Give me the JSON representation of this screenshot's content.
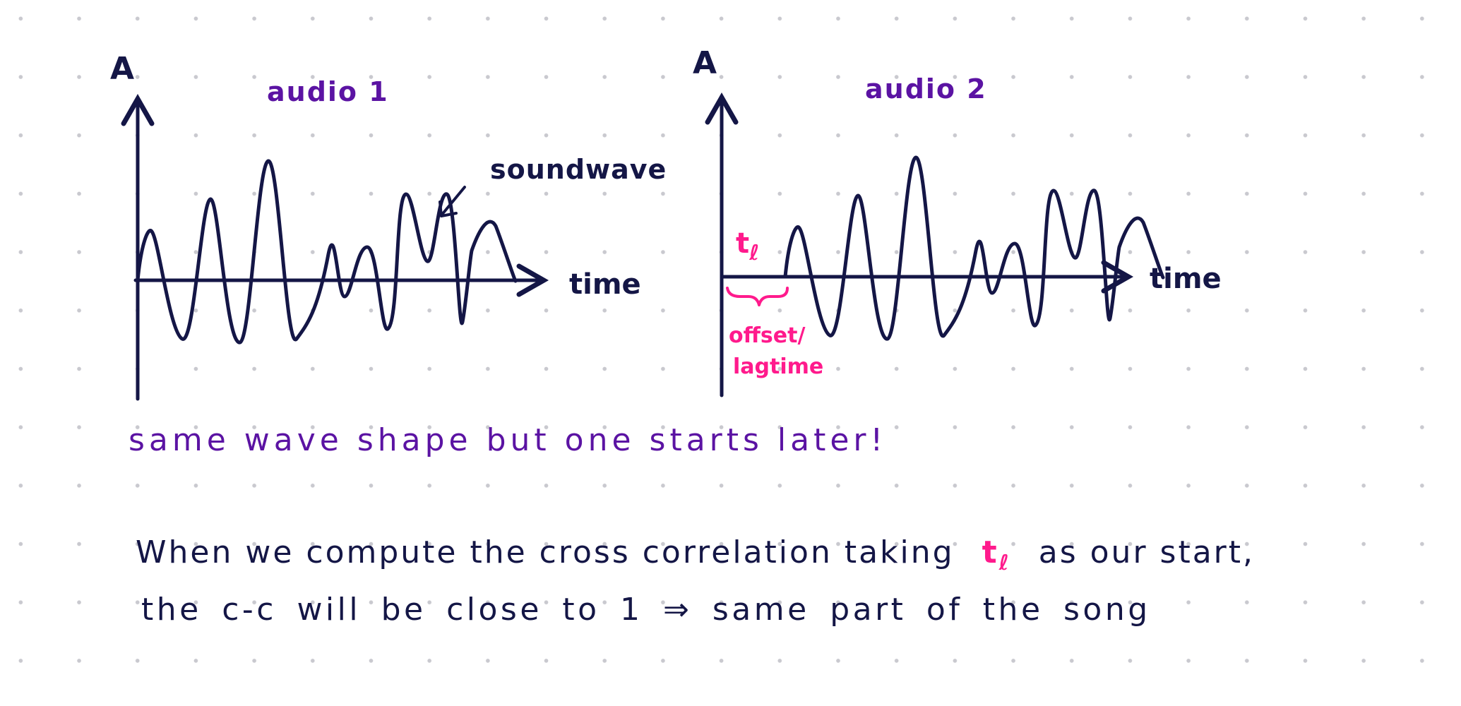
{
  "colors": {
    "ink": "#141646",
    "purple": "#5b13a3",
    "pink": "#ff1a8c",
    "dots": "#c9c9cf"
  },
  "plot1": {
    "title": "audio 1",
    "y_label": "A",
    "x_label": "time",
    "annotation": "soundwave"
  },
  "plot2": {
    "title": "audio 2",
    "y_label": "A",
    "x_label": "time",
    "lag_symbol": "t",
    "lag_subscript": "ℓ",
    "lag_line1": "offset/",
    "lag_line2": "lagtime"
  },
  "note": "same wave shape but one starts later!",
  "explanation": {
    "line1_part1": "When we compute the cross correlation taking",
    "lag_symbol": "t",
    "lag_subscript": "ℓ",
    "line1_part2": "as our start,",
    "line2": "the c-c will be close to 1 ⇒ same part of the song"
  }
}
